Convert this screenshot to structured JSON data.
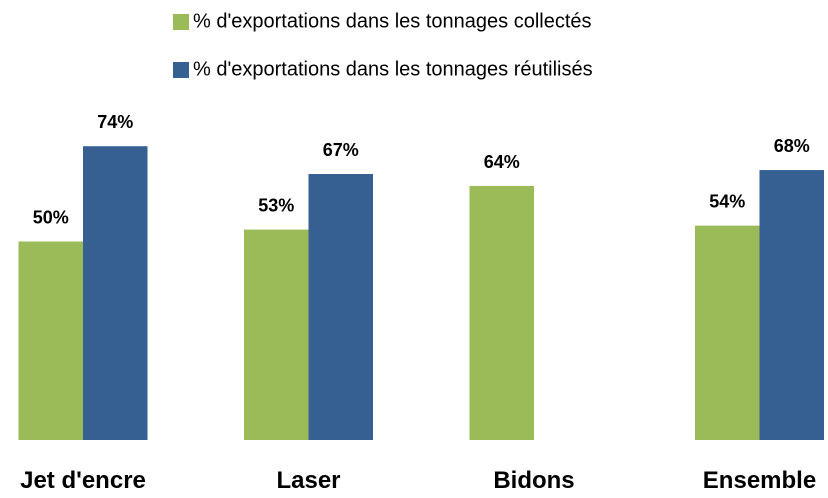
{
  "chart_data": {
    "type": "bar",
    "categories": [
      "Jet d'encre",
      "Laser",
      "Bidons",
      "Ensemble"
    ],
    "series": [
      {
        "name": "% d'exportations dans les tonnages collectés",
        "color": "#9bbb59",
        "values": [
          50,
          53,
          64,
          54
        ],
        "value_labels": [
          "50%",
          "53%",
          "64%",
          "54%"
        ]
      },
      {
        "name": "% d'exportations dans les tonnages réutilisés",
        "color": "#376092",
        "values": [
          74,
          67,
          null,
          68
        ],
        "value_labels": [
          "74%",
          "67%",
          null,
          "68%"
        ]
      }
    ]
  }
}
